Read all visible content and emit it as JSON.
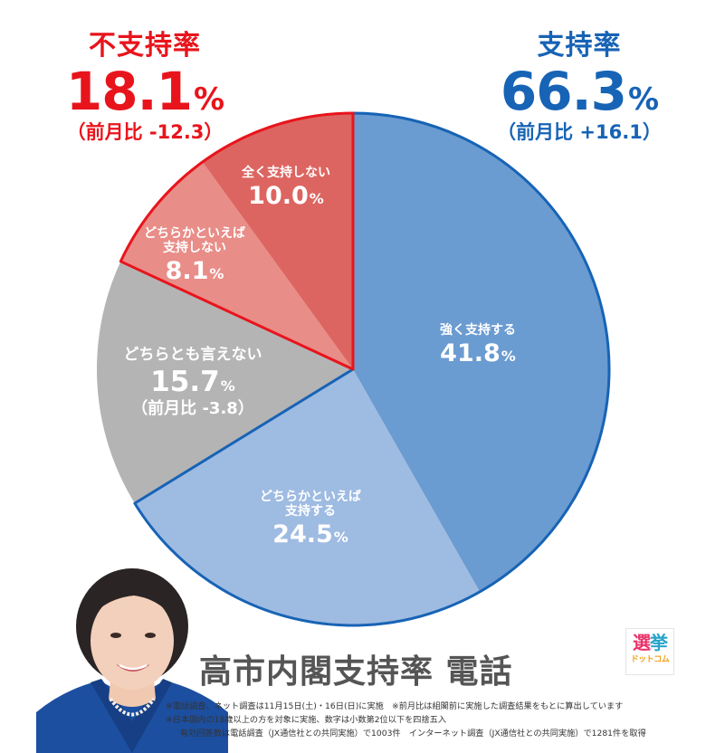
{
  "disapproval": {
    "title": "不支持率",
    "value": "18.1",
    "unit": "%",
    "diff": "（前月比 -12.3）",
    "color": "#e8141c"
  },
  "approval": {
    "title": "支持率",
    "value": "66.3",
    "unit": "%",
    "diff": "（前月比 +16.1）",
    "color": "#1763b5"
  },
  "slices": [
    {
      "name": "強く支持する",
      "value": "41.8",
      "unit": "%",
      "color": "#6a9bd1"
    },
    {
      "name_line1": "どちらかといえば",
      "name_line2": "支持する",
      "value": "24.5",
      "unit": "%",
      "color": "#9ebbe2"
    },
    {
      "name": "どちらとも言えない",
      "value": "15.7",
      "unit": "%",
      "note": "（前月比 -3.8）",
      "color": "#b4b4b5"
    },
    {
      "name_line1": "どちらかといえば",
      "name_line2": "支持しない",
      "value": "8.1",
      "unit": "%",
      "color": "#e88d88"
    },
    {
      "name": "全く支持しない",
      "value": "10.0",
      "unit": "%",
      "color": "#dd6561"
    }
  ],
  "main_title": "高市内閣支持率 電話",
  "footnotes": [
    "※電話調査、ネット調査は11月15日(土)・16日(日)に実施　※前月比は組閣前に実施した調査結果をもとに算出しています",
    "※日本国内の18歳以上の方を対象に実施、数字は小数第2位以下を四捨五入",
    "有効回答数は電話調査（JX通信社との共同実施）で1003件　インターネット調査（JX通信社との共同実施）で1281件を取得"
  ],
  "logo": {
    "line1a": "選",
    "line1b": "挙",
    "line2": "ドットコム"
  },
  "photo": {
    "alt": "高市首相の写真"
  },
  "chart_data": {
    "type": "pie",
    "title": "高市内閣支持率 電話",
    "start_angle": "12 o'clock, clockwise",
    "categories": [
      "強く支持する",
      "どちらかといえば支持する",
      "どちらとも言えない",
      "どちらかといえば支持しない",
      "全く支持しない"
    ],
    "values": [
      41.8,
      24.5,
      15.7,
      8.1,
      10.0
    ],
    "colors": [
      "#6a9bd1",
      "#9ebbe2",
      "#b4b4b5",
      "#e88d88",
      "#dd6561"
    ],
    "groups": [
      {
        "name": "支持率",
        "value": 66.3,
        "change": 16.1,
        "members": [
          "強く支持する",
          "どちらかといえば支持する"
        ],
        "outline": "#1763b5"
      },
      {
        "name": "不支持率",
        "value": 18.1,
        "change": -12.3,
        "members": [
          "どちらかといえば支持しない",
          "全く支持しない"
        ],
        "outline": "#e8141c"
      }
    ],
    "annotations": [
      "どちらとも言えない 前月比 -3.8"
    ],
    "legend": "none (labels inside slices)"
  }
}
